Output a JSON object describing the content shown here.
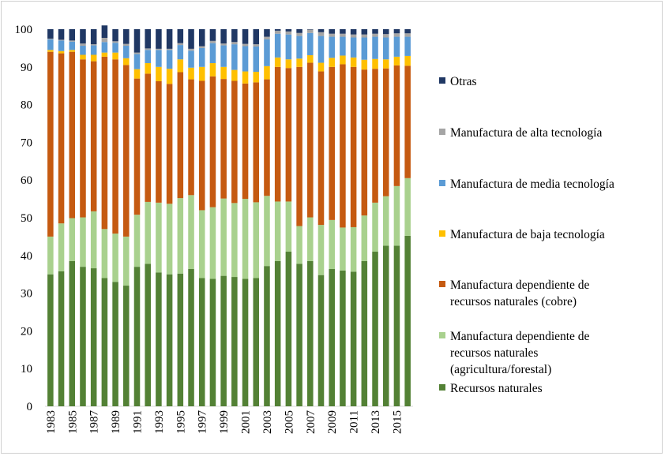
{
  "chart_data": {
    "type": "bar",
    "stacked": true,
    "x": [
      1983,
      1984,
      1985,
      1986,
      1987,
      1988,
      1989,
      1990,
      1991,
      1992,
      1993,
      1994,
      1995,
      1996,
      1997,
      1998,
      1999,
      2000,
      2001,
      2002,
      2003,
      2004,
      2005,
      2006,
      2007,
      2008,
      2009,
      2010,
      2011,
      2012,
      2013,
      2014,
      2015,
      2016
    ],
    "x_tick_labels": [
      "1983",
      "1985",
      "1987",
      "1989",
      "1991",
      "1993",
      "1995",
      "1997",
      "1999",
      "2001",
      "2003",
      "2005",
      "2007",
      "2009",
      "2011",
      "2013",
      "2015"
    ],
    "ylim": [
      0,
      100
    ],
    "y_ticks": [
      "0",
      "10",
      "20",
      "30",
      "40",
      "50",
      "60",
      "70",
      "80",
      "90",
      "100"
    ],
    "legend_position": "right",
    "series": [
      {
        "name": "Recursos naturales",
        "color": "#538135",
        "values": [
          35,
          35.8,
          38.5,
          37,
          36.6,
          34,
          33,
          32,
          37,
          37.8,
          35.5,
          35,
          35.2,
          36.4,
          34,
          33.8,
          34.6,
          34.3,
          33.8,
          34,
          37.2,
          38.5,
          41,
          37.8,
          38.5,
          34.8,
          36.4,
          36,
          35.7,
          38.5,
          41,
          42.6,
          42.6,
          45.2
        ]
      },
      {
        "name": "Manufactura dependiente de recursos naturales (agricultura/forestal)",
        "color": "#A9D18E",
        "values": [
          10,
          12.7,
          11.4,
          13.1,
          15.1,
          13,
          12.8,
          13,
          13.8,
          16.4,
          18.5,
          18.7,
          20,
          19.6,
          18,
          19,
          20.5,
          19.6,
          21.2,
          20.1,
          18.6,
          15.8,
          13.3,
          10,
          11.6,
          13.3,
          13,
          11.4,
          11.8,
          12.1,
          13,
          13.1,
          15.8,
          15.3
        ]
      },
      {
        "name": "Manufactura dependiente de recursos naturales (cobre)",
        "color": "#C55A11",
        "values": [
          49,
          45.1,
          44.1,
          41.9,
          39.8,
          45.7,
          46.2,
          45.5,
          36.1,
          34,
          32.2,
          31.8,
          33.4,
          30.7,
          34.3,
          34.7,
          31.7,
          32.4,
          30.6,
          31.8,
          30.9,
          35.7,
          35.4,
          42.2,
          41,
          40.7,
          40.6,
          43.3,
          42.5,
          38.7,
          35.5,
          33.9,
          32,
          29.8
        ]
      },
      {
        "name": "Manufactura de baja tecnología",
        "color": "#FFC000",
        "values": [
          0.5,
          0.6,
          0.5,
          1.2,
          1.7,
          1.1,
          1.8,
          1.8,
          2.5,
          2.8,
          3.8,
          4,
          3.4,
          3.1,
          3.7,
          3.5,
          3.2,
          2.9,
          3.2,
          2.8,
          3.5,
          2.5,
          2.3,
          2.2,
          2,
          2.3,
          2.4,
          2.3,
          2.5,
          2.6,
          2.6,
          2.4,
          2.3,
          2.6
        ]
      },
      {
        "name": "Manufactura de media tecnología",
        "color": "#5B9BD5",
        "values": [
          2.8,
          2.8,
          2.2,
          2.4,
          2.5,
          2.8,
          2.6,
          3.3,
          4,
          3.5,
          4.5,
          5,
          3.8,
          4.5,
          5,
          5.3,
          5.7,
          6.8,
          6.7,
          6.7,
          7.1,
          6.3,
          6.6,
          6,
          5.9,
          7.1,
          5.6,
          5,
          5.3,
          5.9,
          5.9,
          5.8,
          5.3,
          5.1
        ]
      },
      {
        "name": "Manufactura de alta tecnología",
        "color": "#A5A5A5",
        "values": [
          0.2,
          0.2,
          0.3,
          0.6,
          0.3,
          1.1,
          0.4,
          0.5,
          0.4,
          0.4,
          0.3,
          0.3,
          0.5,
          0.5,
          0.5,
          0.6,
          0.5,
          0.6,
          0.6,
          0.6,
          0.7,
          0.8,
          0.8,
          0.8,
          0.9,
          1,
          0.8,
          0.8,
          0.8,
          0.8,
          0.8,
          0.9,
          0.9,
          0.9
        ]
      },
      {
        "name": "Otras",
        "color": "#203864",
        "values": [
          2.5,
          2.8,
          3,
          3.8,
          4,
          3.3,
          3.2,
          3.9,
          6.2,
          5.1,
          5.2,
          5.2,
          3.7,
          5.2,
          4.5,
          3.1,
          3.8,
          3.4,
          3.9,
          4,
          2,
          0.4,
          0.6,
          1,
          0.1,
          0.8,
          1.2,
          1.2,
          1.4,
          1.4,
          1.2,
          1.3,
          1.1,
          1.1
        ]
      }
    ],
    "legend_order": [
      6,
      5,
      4,
      3,
      2,
      1,
      0
    ],
    "legend_lines": [
      [
        "Otras"
      ],
      [
        "Manufactura de alta tecnología"
      ],
      [
        "Manufactura de media tecnología"
      ],
      [
        "Manufactura de baja tecnología"
      ],
      [
        "Manufactura dependiente de",
        "recursos naturales (cobre)"
      ],
      [
        "Manufactura dependiente de",
        "recursos naturales",
        "(agricultura/forestal)"
      ],
      [
        "Recursos naturales"
      ]
    ]
  }
}
